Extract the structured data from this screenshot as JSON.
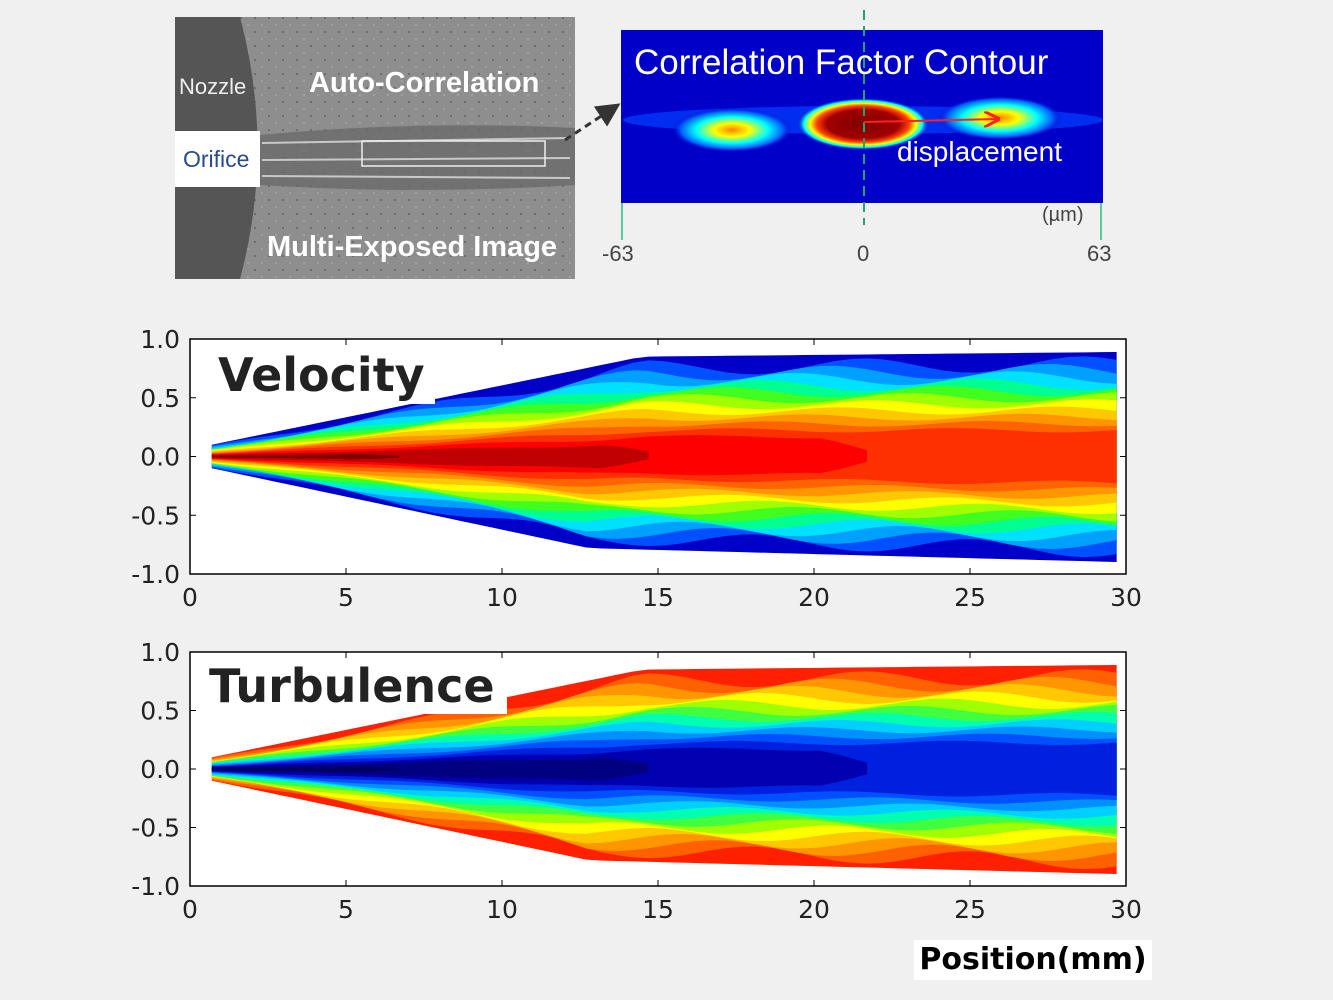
{
  "photo": {
    "nozzle_label": "Nozzle",
    "orifice_label": "Orifice",
    "auto_corr_label": "Auto-Correlation",
    "multi_label": "Multi-Exposed Image"
  },
  "correlation": {
    "title": "Correlation Factor Contour",
    "displacement_label": "displacement",
    "unit_label": "(µm)",
    "ticks": [
      "-63",
      "0",
      "63"
    ]
  },
  "chart_data": [
    {
      "type": "heatmap",
      "title": "Velocity",
      "xlabel": "",
      "ylabel": "",
      "xlim": [
        0,
        30
      ],
      "ylim": [
        -1.0,
        1.0
      ],
      "xticks": [
        "0",
        "5",
        "10",
        "15",
        "20",
        "25",
        "30"
      ],
      "yticks": [
        "1.0",
        "0.5",
        "0.0",
        "-0.5",
        "-1.0"
      ],
      "colormap": "jet",
      "core": "high",
      "colors": [
        "#0000c8",
        "#0050ff",
        "#00a0ff",
        "#00e0ff",
        "#00ff90",
        "#40ff20",
        "#a0ff00",
        "#ffff00",
        "#ffc800",
        "#ff9600",
        "#ff6400",
        "#ff3000",
        "#ff0000",
        "#c00000",
        "#800000"
      ]
    },
    {
      "type": "heatmap",
      "title": "Turbulence",
      "xlabel": "Position(mm)",
      "ylabel": "",
      "xlim": [
        0,
        30
      ],
      "ylim": [
        -1.0,
        1.0
      ],
      "xticks": [
        "0",
        "5",
        "10",
        "15",
        "20",
        "25",
        "30"
      ],
      "yticks": [
        "1.0",
        "0.5",
        "0.0",
        "-0.5",
        "-1.0"
      ],
      "colormap": "jet",
      "core": "low",
      "colors": [
        "#ff2000",
        "#ff6000",
        "#ff9600",
        "#ffc800",
        "#ffff00",
        "#a0ff00",
        "#40ff40",
        "#00ffb0",
        "#00d0ff",
        "#0090ff",
        "#0050ff",
        "#0020e0",
        "#0000b0",
        "#000080",
        "#000060"
      ]
    }
  ]
}
